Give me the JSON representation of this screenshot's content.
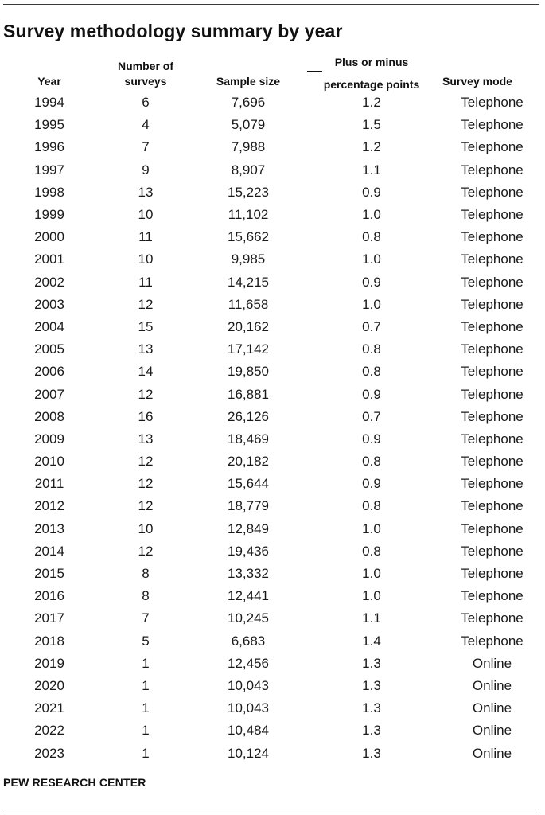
{
  "title": "Survey methodology summary by year",
  "headers": {
    "year": "Year",
    "num_line1": "Number of",
    "num_line2": "surveys",
    "sample": "Sample size",
    "moe_line1": "Plus or minus",
    "moe_line2": "percentage points",
    "mode": "Survey mode"
  },
  "rows": [
    {
      "year": "1994",
      "surveys": "6",
      "sample": "7,696",
      "moe": "1.2",
      "mode": "Telephone"
    },
    {
      "year": "1995",
      "surveys": "4",
      "sample": "5,079",
      "moe": "1.5",
      "mode": "Telephone"
    },
    {
      "year": "1996",
      "surveys": "7",
      "sample": "7,988",
      "moe": "1.2",
      "mode": "Telephone"
    },
    {
      "year": "1997",
      "surveys": "9",
      "sample": "8,907",
      "moe": "1.1",
      "mode": "Telephone"
    },
    {
      "year": "1998",
      "surveys": "13",
      "sample": "15,223",
      "moe": "0.9",
      "mode": "Telephone"
    },
    {
      "year": "1999",
      "surveys": "10",
      "sample": "11,102",
      "moe": "1.0",
      "mode": "Telephone"
    },
    {
      "year": "2000",
      "surveys": "11",
      "sample": "15,662",
      "moe": "0.8",
      "mode": "Telephone"
    },
    {
      "year": "2001",
      "surveys": "10",
      "sample": "9,985",
      "moe": "1.0",
      "mode": "Telephone"
    },
    {
      "year": "2002",
      "surveys": "11",
      "sample": "14,215",
      "moe": "0.9",
      "mode": "Telephone"
    },
    {
      "year": "2003",
      "surveys": "12",
      "sample": "11,658",
      "moe": "1.0",
      "mode": "Telephone"
    },
    {
      "year": "2004",
      "surveys": "15",
      "sample": "20,162",
      "moe": "0.7",
      "mode": "Telephone"
    },
    {
      "year": "2005",
      "surveys": "13",
      "sample": "17,142",
      "moe": "0.8",
      "mode": "Telephone"
    },
    {
      "year": "2006",
      "surveys": "14",
      "sample": "19,850",
      "moe": "0.8",
      "mode": "Telephone"
    },
    {
      "year": "2007",
      "surveys": "12",
      "sample": "16,881",
      "moe": "0.9",
      "mode": "Telephone"
    },
    {
      "year": "2008",
      "surveys": "16",
      "sample": "26,126",
      "moe": "0.7",
      "mode": "Telephone"
    },
    {
      "year": "2009",
      "surveys": "13",
      "sample": "18,469",
      "moe": "0.9",
      "mode": "Telephone"
    },
    {
      "year": "2010",
      "surveys": "12",
      "sample": "20,182",
      "moe": "0.8",
      "mode": "Telephone"
    },
    {
      "year": "2011",
      "surveys": "12",
      "sample": "15,644",
      "moe": "0.9",
      "mode": "Telephone"
    },
    {
      "year": "2012",
      "surveys": "12",
      "sample": "18,779",
      "moe": "0.8",
      "mode": "Telephone"
    },
    {
      "year": "2013",
      "surveys": "10",
      "sample": "12,849",
      "moe": "1.0",
      "mode": "Telephone"
    },
    {
      "year": "2014",
      "surveys": "12",
      "sample": "19,436",
      "moe": "0.8",
      "mode": "Telephone"
    },
    {
      "year": "2015",
      "surveys": "8",
      "sample": "13,332",
      "moe": "1.0",
      "mode": "Telephone"
    },
    {
      "year": "2016",
      "surveys": "8",
      "sample": "12,441",
      "moe": "1.0",
      "mode": "Telephone"
    },
    {
      "year": "2017",
      "surveys": "7",
      "sample": "10,245",
      "moe": "1.1",
      "mode": "Telephone"
    },
    {
      "year": "2018",
      "surveys": "5",
      "sample": "6,683",
      "moe": "1.4",
      "mode": "Telephone"
    },
    {
      "year": "2019",
      "surveys": "1",
      "sample": "12,456",
      "moe": "1.3",
      "mode": "Online"
    },
    {
      "year": "2020",
      "surveys": "1",
      "sample": "10,043",
      "moe": "1.3",
      "mode": "Online"
    },
    {
      "year": "2021",
      "surveys": "1",
      "sample": "10,043",
      "moe": "1.3",
      "mode": "Online"
    },
    {
      "year": "2022",
      "surveys": "1",
      "sample": "10,484",
      "moe": "1.3",
      "mode": "Online"
    },
    {
      "year": "2023",
      "surveys": "1",
      "sample": "10,124",
      "moe": "1.3",
      "mode": "Online"
    }
  ],
  "source": "PEW RESEARCH CENTER"
}
